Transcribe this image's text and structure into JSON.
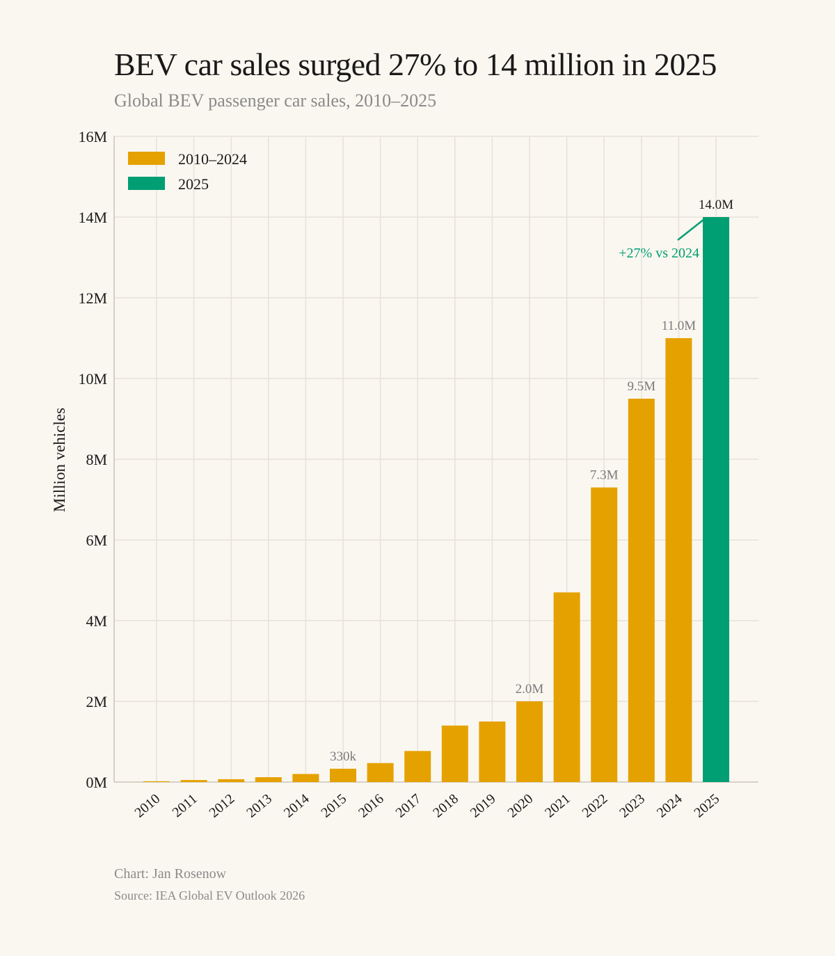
{
  "title": "BEV car sales surged 27% to 14 million in 2025",
  "subtitle": "Global BEV passenger car sales, 2010–2025",
  "footer": {
    "credit": "Chart: Jan Rosenow",
    "source": "Source: IEA Global EV Outlook 2026"
  },
  "colors": {
    "historic": "#e5a100",
    "current": "#009e73",
    "grid": "#e6e2da",
    "axis": "#c9c4bb",
    "label_muted": "#7a7a7a",
    "background": "#faf7f0"
  },
  "chart_data": {
    "type": "bar",
    "ylabel": "Million vehicles",
    "xlabel": "",
    "ylim": [
      0,
      16
    ],
    "yticks": [
      {
        "value": 0,
        "label": "0M"
      },
      {
        "value": 2,
        "label": "2M"
      },
      {
        "value": 4,
        "label": "4M"
      },
      {
        "value": 6,
        "label": "6M"
      },
      {
        "value": 8,
        "label": "8M"
      },
      {
        "value": 10,
        "label": "10M"
      },
      {
        "value": 12,
        "label": "12M"
      },
      {
        "value": 14,
        "label": "14M"
      },
      {
        "value": 16,
        "label": "16M"
      }
    ],
    "grid": true,
    "legend_position": "top-left",
    "legend": [
      {
        "label": "2010–2024",
        "color": "#e5a100"
      },
      {
        "label": "2025",
        "color": "#009e73"
      }
    ],
    "categories": [
      "2010",
      "2011",
      "2012",
      "2013",
      "2014",
      "2015",
      "2016",
      "2017",
      "2018",
      "2019",
      "2020",
      "2021",
      "2022",
      "2023",
      "2024",
      "2025"
    ],
    "values": [
      0.02,
      0.05,
      0.07,
      0.12,
      0.2,
      0.33,
      0.47,
      0.77,
      1.4,
      1.5,
      2.0,
      4.7,
      7.3,
      9.5,
      11.0,
      14.0
    ],
    "series_of_category": [
      "2010–2024",
      "2010–2024",
      "2010–2024",
      "2010–2024",
      "2010–2024",
      "2010–2024",
      "2010–2024",
      "2010–2024",
      "2010–2024",
      "2010–2024",
      "2010–2024",
      "2010–2024",
      "2010–2024",
      "2010–2024",
      "2010–2024",
      "2025"
    ],
    "data_labels": [
      {
        "category": "2015",
        "label": "330k",
        "emphasis": false
      },
      {
        "category": "2020",
        "label": "2.0M",
        "emphasis": false
      },
      {
        "category": "2022",
        "label": "7.3M",
        "emphasis": false
      },
      {
        "category": "2023",
        "label": "9.5M",
        "emphasis": false
      },
      {
        "category": "2024",
        "label": "11.0M",
        "emphasis": false
      },
      {
        "category": "2025",
        "label": "14.0M",
        "emphasis": true
      }
    ],
    "annotations": [
      {
        "category": "2025",
        "text": "+27% vs 2024",
        "color": "#009e73"
      }
    ]
  }
}
